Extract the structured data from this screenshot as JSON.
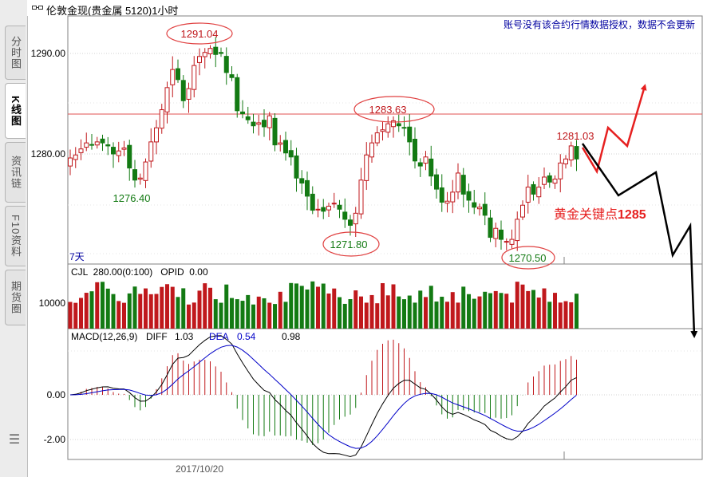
{
  "window": {
    "title": "伦敦金现(贵金属 5120)1小时",
    "notice": "账号没有该合约行情数据授权，数据不会更新"
  },
  "sidebar": {
    "tabs": [
      {
        "label": "分时图",
        "active": false
      },
      {
        "label": "K线图",
        "active": true
      },
      {
        "label": "资讯链",
        "active": false
      },
      {
        "label": "F10资料",
        "active": false
      },
      {
        "label": "期货圈",
        "active": false
      }
    ],
    "menu_icon": "list-menu-icon"
  },
  "colors": {
    "up": "#c0181c",
    "down": "#137a13",
    "axis": "#808080",
    "grid": "#c8c8c8",
    "dif": "#000000",
    "dea": "#0000c8",
    "arrow_red": "#e62020",
    "arrow_black": "#000000"
  },
  "price_panel": {
    "y_ticks": [
      "1290.00",
      "1280.00"
    ],
    "period_label": "7天",
    "resistance_line": 1284.1,
    "annotations": [
      {
        "text": "1291.04",
        "kind": "high"
      },
      {
        "text": "1283.63",
        "kind": "high"
      },
      {
        "text": "1281.03",
        "kind": "plain"
      },
      {
        "text": "1276.40",
        "kind": "low"
      },
      {
        "text": "1271.80",
        "kind": "low"
      },
      {
        "text": "1270.50",
        "kind": "low"
      }
    ],
    "key_point_text": "黄金关键点",
    "key_point_value": "1285"
  },
  "volume_panel": {
    "header": "CJL  280.00(0:100)   OPID  0.00",
    "y_tick": "10000"
  },
  "macd_panel": {
    "header_name": "MACD(12,26,9)",
    "diff_label": "DIFF",
    "diff_value": "1.03",
    "dea_label": "DEA",
    "dea_value": "0.54",
    "macd_value": "0.98",
    "y_ticks": [
      "0.00",
      "-2.00"
    ]
  },
  "x_axis": {
    "date_label": "2017/10/20"
  },
  "chart_data": {
    "type": "candlestick",
    "interval": "1 hour",
    "count": 95,
    "close": [
      1279.6,
      1279.9,
      1280.5,
      1281.1,
      1280.9,
      1281.2,
      1281.1,
      1280.8,
      1280.0,
      1280.3,
      1280.6,
      1278.6,
      1277.4,
      1277.6,
      1279.2,
      1281.2,
      1282.6,
      1284.4,
      1286.6,
      1288.4,
      1287.4,
      1285.3,
      1286.5,
      1288.8,
      1289.7,
      1290.1,
      1290.5,
      1289.9,
      1290.0,
      1288.1,
      1287.6,
      1284.3,
      1284.0,
      1283.4,
      1282.8,
      1283.1,
      1282.7,
      1283.8,
      1280.9,
      1281.1,
      1280.1,
      1279.7,
      1277.6,
      1277.1,
      1275.8,
      1274.4,
      1274.5,
      1274.3,
      1274.8,
      1275.1,
      1274.5,
      1273.5,
      1272.9,
      1274.1,
      1277.4,
      1279.9,
      1281.1,
      1282.1,
      1282.4,
      1283.0,
      1283.3,
      1282.8,
      1282.6,
      1281.2,
      1279.3,
      1278.8,
      1279.7,
      1277.8,
      1276.5,
      1275.2,
      1275.3,
      1276.2,
      1278.1,
      1276.0,
      1275.4,
      1274.7,
      1274.7,
      1273.9,
      1271.7,
      1272.6,
      1271.5,
      1271.3,
      1271.5,
      1273.5,
      1274.9,
      1276.7,
      1276.0,
      1276.7,
      1277.7,
      1277.2,
      1277.5,
      1279.1,
      1279.5,
      1280.8,
      1279.5
    ],
    "volume_max": 12000,
    "macd": {
      "dif_range": [
        -2.6,
        1.1
      ],
      "dea_range": [
        -2.3,
        0.9
      ],
      "hist_range": [
        -1.25,
        1.45
      ]
    },
    "x_label": "2017/10/20"
  }
}
